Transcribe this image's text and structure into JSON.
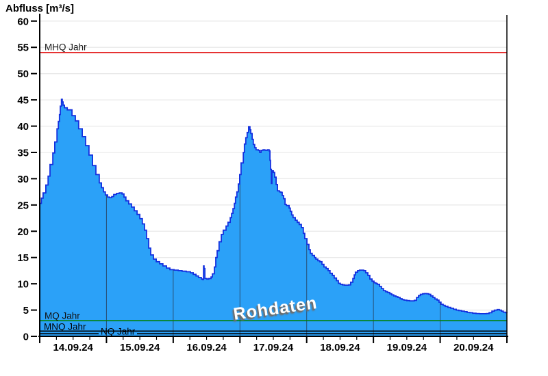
{
  "header": {
    "title": "Abfluss [m³/s]"
  },
  "chart_data": {
    "type": "area",
    "title": "Abfluss [m³/s]",
    "watermark": "Rohdaten",
    "x_axis": {
      "start": "14.09.24 00:00",
      "range_hours": [
        0,
        168
      ],
      "day_labels": [
        "14.09.24",
        "15.09.24",
        "16.09.24",
        "17.09.24",
        "18.09.24",
        "19.09.24",
        "20.09.24"
      ],
      "major_tick_hours": 24,
      "minor_tick_hours": 6
    },
    "y_axis": {
      "label": "Abfluss [m³/s]",
      "ylim": [
        0,
        62
      ],
      "ticks": [
        0,
        5,
        10,
        15,
        20,
        25,
        30,
        35,
        40,
        45,
        50,
        55,
        60
      ]
    },
    "reference_lines": [
      {
        "label": "MHQ Jahr",
        "value": 54,
        "color": "#e00000"
      },
      {
        "label": "MQ Jahr",
        "value": 3,
        "color": "#008000"
      },
      {
        "label": "MNQ Jahr",
        "value": 1,
        "color": "#000000"
      },
      {
        "label": "NQ Jahr",
        "value": 0.5,
        "color": "#000000"
      }
    ],
    "colors": {
      "area_fill": "#2ba1f8",
      "area_stroke": "#1430df",
      "grid": "#e9e9e9",
      "day_line": "#28415f",
      "axis": "#000000"
    },
    "series": [
      {
        "name": "Rohdaten",
        "unit": "m³/s",
        "points": [
          [
            0,
            25.3
          ],
          [
            0.6,
            26.3
          ],
          [
            1.2,
            27.3
          ],
          [
            2.2,
            28.8
          ],
          [
            3,
            30.5
          ],
          [
            3.7,
            32.7
          ],
          [
            4.7,
            34.9
          ],
          [
            5.4,
            37
          ],
          [
            6.2,
            39.5
          ],
          [
            6.7,
            40.9
          ],
          [
            7.1,
            42.2
          ],
          [
            7.4,
            43.8
          ],
          [
            7.8,
            45.1
          ],
          [
            8.1,
            44.6
          ],
          [
            8.4,
            44
          ],
          [
            8.9,
            43.5
          ],
          [
            9.9,
            43.1
          ],
          [
            11.6,
            42
          ],
          [
            12.8,
            41
          ],
          [
            14,
            39.5
          ],
          [
            15.3,
            38
          ],
          [
            16.5,
            36.3
          ],
          [
            17.7,
            34.5
          ],
          [
            19,
            32.5
          ],
          [
            20.2,
            30.8
          ],
          [
            21.4,
            29.2
          ],
          [
            22.2,
            28.3
          ],
          [
            22.9,
            27.5
          ],
          [
            23.6,
            26.9
          ],
          [
            24.4,
            26.5
          ],
          [
            25.1,
            26.4
          ],
          [
            25.9,
            26.6
          ],
          [
            26.6,
            27
          ],
          [
            27.6,
            27.2
          ],
          [
            28.6,
            27.3
          ],
          [
            29.6,
            27.1
          ],
          [
            30.3,
            26.5
          ],
          [
            31,
            25.8
          ],
          [
            32,
            25.2
          ],
          [
            33,
            24.6
          ],
          [
            34,
            23.9
          ],
          [
            35,
            23.2
          ],
          [
            36,
            22.4
          ],
          [
            36.9,
            21.4
          ],
          [
            37.7,
            20.2
          ],
          [
            38.4,
            18.6
          ],
          [
            39.2,
            16.8
          ],
          [
            39.9,
            15.5
          ],
          [
            40.9,
            14.7
          ],
          [
            41.9,
            14.2
          ],
          [
            43.1,
            13.8
          ],
          [
            44.3,
            13.4
          ],
          [
            45.6,
            13
          ],
          [
            46.8,
            12.7
          ],
          [
            48.3,
            12.6
          ],
          [
            49.8,
            12.5
          ],
          [
            51.2,
            12.4
          ],
          [
            52.7,
            12.3
          ],
          [
            54.2,
            12.1
          ],
          [
            55.2,
            11.8
          ],
          [
            56.2,
            11.5
          ],
          [
            57.1,
            11.2
          ],
          [
            58.1,
            10.9
          ],
          [
            58.6,
            10.8
          ],
          [
            58.8,
            10.8
          ],
          [
            58.9,
            13.4
          ],
          [
            59.1,
            12.9
          ],
          [
            59.4,
            11
          ],
          [
            60.1,
            10.9
          ],
          [
            60.8,
            11
          ],
          [
            61.6,
            11.3
          ],
          [
            62.1,
            11.9
          ],
          [
            62.8,
            13.2
          ],
          [
            63.3,
            15
          ],
          [
            63.8,
            16.3
          ],
          [
            64.5,
            18
          ],
          [
            65.3,
            19.4
          ],
          [
            66,
            20.2
          ],
          [
            67,
            21
          ],
          [
            67.7,
            21.7
          ],
          [
            68.5,
            22.6
          ],
          [
            69,
            23.4
          ],
          [
            69.5,
            24.3
          ],
          [
            70,
            25.3
          ],
          [
            70.4,
            26.5
          ],
          [
            70.9,
            27.5
          ],
          [
            71.4,
            29
          ],
          [
            71.9,
            30.8
          ],
          [
            72.4,
            33
          ],
          [
            73.2,
            35
          ],
          [
            73.6,
            36.6
          ],
          [
            74.1,
            37.8
          ],
          [
            74.6,
            38.8
          ],
          [
            75.1,
            39.9
          ],
          [
            75.6,
            39.3
          ],
          [
            75.9,
            38.6
          ],
          [
            76.4,
            37.5
          ],
          [
            76.8,
            36.5
          ],
          [
            77.3,
            35.9
          ],
          [
            77.8,
            35.5
          ],
          [
            78.6,
            35.4
          ],
          [
            79.1,
            35
          ],
          [
            79.6,
            35.4
          ],
          [
            80.3,
            35.5
          ],
          [
            81,
            35.4
          ],
          [
            81.8,
            35.5
          ],
          [
            82.5,
            35.3
          ],
          [
            82.8,
            33.5
          ],
          [
            83,
            31.8
          ],
          [
            83.3,
            29.1
          ],
          [
            83.5,
            31.5
          ],
          [
            84,
            31.2
          ],
          [
            84.5,
            30.3
          ],
          [
            85,
            28.9
          ],
          [
            85.5,
            27.7
          ],
          [
            86.2,
            27.5
          ],
          [
            86.7,
            27.4
          ],
          [
            87.2,
            26.8
          ],
          [
            87.7,
            26.2
          ],
          [
            88.2,
            25.1
          ],
          [
            88.7,
            24.9
          ],
          [
            89.2,
            24.9
          ],
          [
            89.7,
            24.4
          ],
          [
            90.1,
            23.8
          ],
          [
            90.6,
            23.1
          ],
          [
            91.1,
            22.6
          ],
          [
            91.9,
            22.1
          ],
          [
            92.6,
            21.7
          ],
          [
            93.3,
            21.3
          ],
          [
            94.1,
            20.7
          ],
          [
            94.8,
            19.6
          ],
          [
            95.3,
            18.6
          ],
          [
            96.1,
            17.5
          ],
          [
            96.8,
            16.5
          ],
          [
            97.3,
            15.8
          ],
          [
            98,
            15.4
          ],
          [
            98.8,
            15
          ],
          [
            99.3,
            14.7
          ],
          [
            100,
            14.4
          ],
          [
            100.7,
            14.2
          ],
          [
            101.5,
            13.7
          ],
          [
            102.2,
            13.2
          ],
          [
            103,
            12.9
          ],
          [
            103.7,
            12.5
          ],
          [
            104.4,
            12
          ],
          [
            105.2,
            11.6
          ],
          [
            105.9,
            11.1
          ],
          [
            106.7,
            10.6
          ],
          [
            107.4,
            10.1
          ],
          [
            108.1,
            9.9
          ],
          [
            108.9,
            9.8
          ],
          [
            109.6,
            9.75
          ],
          [
            110.3,
            9.75
          ],
          [
            111.1,
            9.8
          ],
          [
            111.8,
            10.3
          ],
          [
            112.6,
            11
          ],
          [
            113.1,
            11.7
          ],
          [
            113.5,
            12.2
          ],
          [
            114.3,
            12.5
          ],
          [
            115,
            12.6
          ],
          [
            115.8,
            12.6
          ],
          [
            116.5,
            12.5
          ],
          [
            117.2,
            12.1
          ],
          [
            118,
            11.6
          ],
          [
            118.7,
            10.9
          ],
          [
            119.5,
            10.5
          ],
          [
            120.2,
            10.2
          ],
          [
            120.9,
            10.05
          ],
          [
            121.4,
            9.9
          ],
          [
            122.2,
            9.5
          ],
          [
            122.9,
            9.1
          ],
          [
            123.6,
            8.7
          ],
          [
            124.4,
            8.5
          ],
          [
            125.1,
            8.35
          ],
          [
            125.9,
            8.1
          ],
          [
            126.6,
            7.9
          ],
          [
            127.3,
            7.7
          ],
          [
            128.1,
            7.55
          ],
          [
            128.8,
            7.4
          ],
          [
            129.6,
            7.15
          ],
          [
            130.3,
            7
          ],
          [
            131,
            6.9
          ],
          [
            132,
            6.8
          ],
          [
            133,
            6.75
          ],
          [
            134,
            6.75
          ],
          [
            134.7,
            6.85
          ],
          [
            135.5,
            7.4
          ],
          [
            136.2,
            7.75
          ],
          [
            136.9,
            8
          ],
          [
            137.7,
            8.1
          ],
          [
            138.4,
            8.15
          ],
          [
            139.2,
            8.1
          ],
          [
            139.9,
            8
          ],
          [
            140.6,
            7.7
          ],
          [
            141.4,
            7.4
          ],
          [
            142.1,
            7.1
          ],
          [
            142.9,
            6.9
          ],
          [
            143.6,
            6.5
          ],
          [
            144.3,
            6.1
          ],
          [
            145.1,
            5.9
          ],
          [
            145.8,
            5.7
          ],
          [
            146.8,
            5.5
          ],
          [
            147.8,
            5.35
          ],
          [
            148.8,
            5.15
          ],
          [
            149.8,
            5
          ],
          [
            150.7,
            4.9
          ],
          [
            151.7,
            4.8
          ],
          [
            152.7,
            4.7
          ],
          [
            153.7,
            4.55
          ],
          [
            154.7,
            4.5
          ],
          [
            155.7,
            4.4
          ],
          [
            156.9,
            4.35
          ],
          [
            158.1,
            4.3
          ],
          [
            159.4,
            4.3
          ],
          [
            160.6,
            4.35
          ],
          [
            161.6,
            4.5
          ],
          [
            162.6,
            4.8
          ],
          [
            163.5,
            5
          ],
          [
            164.5,
            5.1
          ],
          [
            165.3,
            5
          ],
          [
            166,
            4.8
          ],
          [
            166.7,
            4.6
          ],
          [
            167.5,
            4.5
          ],
          [
            168,
            4.45
          ]
        ]
      }
    ]
  }
}
